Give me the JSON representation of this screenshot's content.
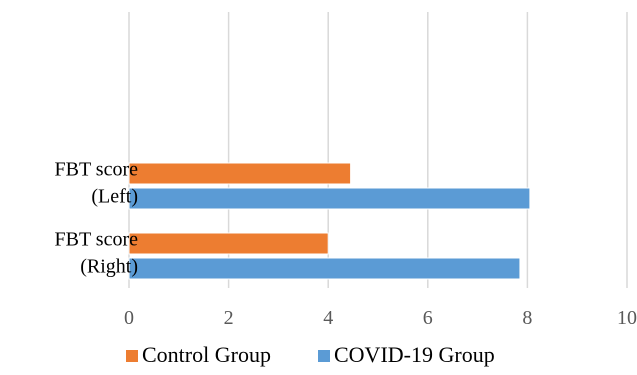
{
  "chart_data": {
    "type": "bar",
    "orientation": "horizontal",
    "categories": [
      [
        "FBT score",
        "(Left)"
      ],
      [
        "FBT score",
        "(Right)"
      ]
    ],
    "series": [
      {
        "name": "Control Group",
        "color": "#ED7D31",
        "values": [
          4.45,
          4.0
        ]
      },
      {
        "name": "COVID-19 Group",
        "color": "#5B9BD5",
        "values": [
          8.05,
          7.85
        ]
      }
    ],
    "xlim": [
      0,
      10
    ],
    "xticks": [
      "0",
      "2",
      "4",
      "6",
      "8",
      "10"
    ],
    "grid": true,
    "legend_position": "bottom",
    "title": "",
    "xlabel": "",
    "ylabel": ""
  }
}
